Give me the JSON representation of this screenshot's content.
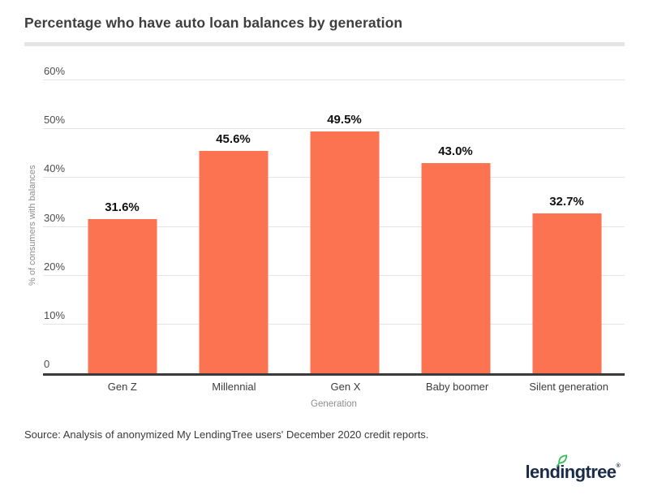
{
  "title": "Percentage who have auto loan balances by generation",
  "source_note": "Source: Analysis of anonymized My LendingTree users' December 2020 credit reports.",
  "logo": {
    "text": "lendingtree",
    "trademark": "®",
    "navy": "#1a2b49",
    "leaf_green": "#2bbd4e"
  },
  "colors": {
    "bar": "#fc7351",
    "gridline": "#e4e4e4",
    "axis_line": "#3b3b3b",
    "title_text": "#3e3e3e",
    "tick_text": "#4d4d4d",
    "muted_text": "#8e8e8e"
  },
  "chart_data": {
    "type": "bar",
    "categories": [
      "Gen Z",
      "Millennial",
      "Gen X",
      "Baby boomer",
      "Silent generation"
    ],
    "values": [
      31.6,
      45.6,
      49.5,
      43.0,
      32.7
    ],
    "value_labels": [
      "31.6%",
      "45.6%",
      "49.5%",
      "43.0%",
      "32.7%"
    ],
    "title": "Percentage who have auto loan balances by generation",
    "xlabel": "Generation",
    "ylabel": "% of consumers with balances",
    "ylim": [
      0,
      60
    ],
    "yticks": [
      0,
      10,
      20,
      30,
      40,
      50,
      60
    ],
    "ytick_labels": [
      "0",
      "10%",
      "20%",
      "30%",
      "40%",
      "50%",
      "60%"
    ],
    "grid": true,
    "legend": false,
    "bar_color": "#fc7351"
  }
}
